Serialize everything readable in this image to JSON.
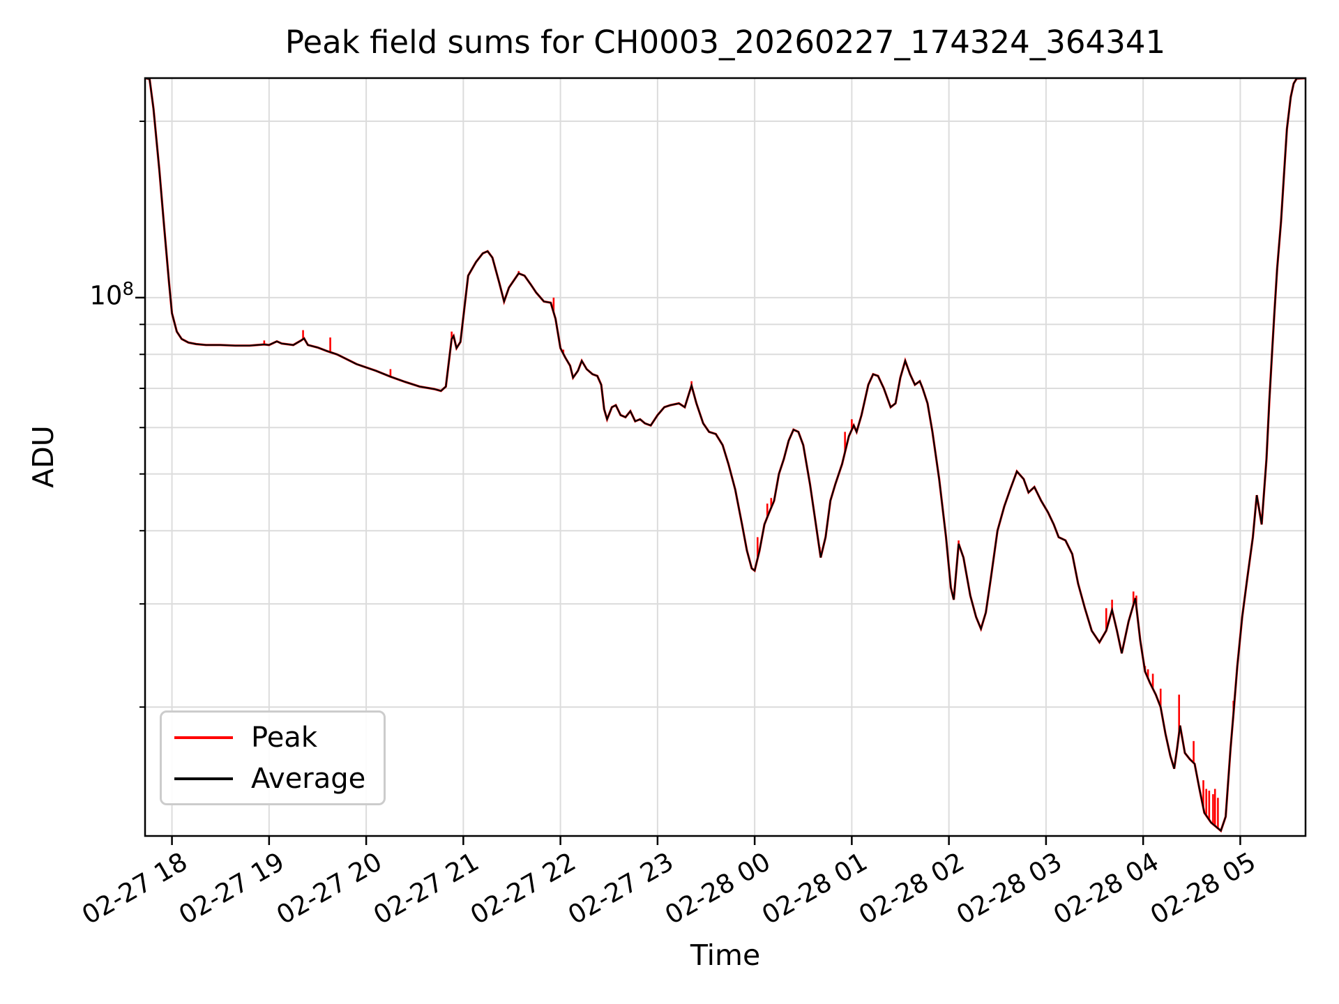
{
  "chart_data": {
    "type": "line",
    "title": "Peak field sums for CH0003_20260227_174324_364341",
    "xlabel": "Time",
    "ylabel": "ADU",
    "yscale": "log",
    "grid": "both",
    "legend_position": "lower left",
    "x_unit": "hours since 2026-02-27 18:00",
    "xlim": [
      -0.277,
      11.672
    ],
    "ylim": [
      12050000,
      237000000
    ],
    "y_major_tick": {
      "base": "10",
      "exp": "8",
      "value": 100000000.0
    },
    "y_minor_tick_values": [
      200000000.0,
      90000000.0,
      80000000.0,
      70000000.0,
      60000000.0,
      50000000.0,
      40000000.0,
      30000000.0,
      20000000.0
    ],
    "x_ticks": [
      {
        "t": 0,
        "label": "02-27 18"
      },
      {
        "t": 1,
        "label": "02-27 19"
      },
      {
        "t": 2,
        "label": "02-27 20"
      },
      {
        "t": 3,
        "label": "02-27 21"
      },
      {
        "t": 4,
        "label": "02-27 22"
      },
      {
        "t": 5,
        "label": "02-27 23"
      },
      {
        "t": 6,
        "label": "02-28 00"
      },
      {
        "t": 7,
        "label": "02-28 01"
      },
      {
        "t": 8,
        "label": "02-28 02"
      },
      {
        "t": 9,
        "label": "02-28 03"
      },
      {
        "t": 10,
        "label": "02-28 04"
      },
      {
        "t": 11,
        "label": "02-28 05"
      }
    ],
    "legend": [
      {
        "label": "Peak",
        "color": "#ff0000"
      },
      {
        "label": "Average",
        "color": "#000000"
      }
    ],
    "series": [
      {
        "name": "Average",
        "color": "#000000",
        "points": [
          [
            -0.277,
            237000000.0
          ],
          [
            -0.23,
            236000000.0
          ],
          [
            -0.19,
            210000000.0
          ],
          [
            -0.13,
            165000000.0
          ],
          [
            -0.08,
            132000000.0
          ],
          [
            -0.03,
            106000000.0
          ],
          [
            0.0,
            94000000.0
          ],
          [
            0.05,
            87500000.0
          ],
          [
            0.1,
            85000000.0
          ],
          [
            0.17,
            83800000.0
          ],
          [
            0.25,
            83300000.0
          ],
          [
            0.35,
            83000000.0
          ],
          [
            0.5,
            83000000.0
          ],
          [
            0.65,
            82800000.0
          ],
          [
            0.8,
            82800000.0
          ],
          [
            0.95,
            83200000.0
          ],
          [
            1.0,
            83000000.0
          ],
          [
            1.08,
            84200000.0
          ],
          [
            1.13,
            83500000.0
          ],
          [
            1.25,
            83000000.0
          ],
          [
            1.33,
            84500000.0
          ],
          [
            1.36,
            85200000.0
          ],
          [
            1.4,
            83000000.0
          ],
          [
            1.5,
            82200000.0
          ],
          [
            1.6,
            81000000.0
          ],
          [
            1.7,
            80000000.0
          ],
          [
            1.8,
            78500000.0
          ],
          [
            1.9,
            77000000.0
          ],
          [
            2.0,
            76000000.0
          ],
          [
            2.1,
            75000000.0
          ],
          [
            2.25,
            73300000.0
          ],
          [
            2.4,
            71800000.0
          ],
          [
            2.55,
            70500000.0
          ],
          [
            2.7,
            69800000.0
          ],
          [
            2.77,
            69300000.0
          ],
          [
            2.82,
            70500000.0
          ],
          [
            2.88,
            85000000.0
          ],
          [
            2.9,
            86000000.0
          ],
          [
            2.93,
            82000000.0
          ],
          [
            2.97,
            84000000.0
          ],
          [
            3.05,
            109000000.0
          ],
          [
            3.13,
            115000000.0
          ],
          [
            3.2,
            119000000.0
          ],
          [
            3.25,
            120000000.0
          ],
          [
            3.3,
            117000000.0
          ],
          [
            3.37,
            106000000.0
          ],
          [
            3.42,
            98500000.0
          ],
          [
            3.47,
            104000000.0
          ],
          [
            3.52,
            107000000.0
          ],
          [
            3.57,
            110000000.0
          ],
          [
            3.63,
            109000000.0
          ],
          [
            3.7,
            105000000.0
          ],
          [
            3.75,
            102000000.0
          ],
          [
            3.83,
            98500000.0
          ],
          [
            3.9,
            98000000.0
          ],
          [
            3.95,
            92000000.0
          ],
          [
            4.0,
            82000000.0
          ],
          [
            4.05,
            79000000.0
          ],
          [
            4.1,
            76500000.0
          ],
          [
            4.13,
            73000000.0
          ],
          [
            4.18,
            75000000.0
          ],
          [
            4.22,
            78000000.0
          ],
          [
            4.27,
            75500000.0
          ],
          [
            4.33,
            74000000.0
          ],
          [
            4.38,
            73500000.0
          ],
          [
            4.42,
            71000000.0
          ],
          [
            4.45,
            64500000.0
          ],
          [
            4.48,
            62000000.0
          ],
          [
            4.53,
            65000000.0
          ],
          [
            4.57,
            65500000.0
          ],
          [
            4.62,
            63000000.0
          ],
          [
            4.67,
            62500000.0
          ],
          [
            4.72,
            64000000.0
          ],
          [
            4.77,
            61500000.0
          ],
          [
            4.82,
            62000000.0
          ],
          [
            4.87,
            61000000.0
          ],
          [
            4.93,
            60500000.0
          ],
          [
            5.0,
            63000000.0
          ],
          [
            5.07,
            65000000.0
          ],
          [
            5.13,
            65500000.0
          ],
          [
            5.22,
            66000000.0
          ],
          [
            5.28,
            65000000.0
          ],
          [
            5.35,
            70800000.0
          ],
          [
            5.4,
            66000000.0
          ],
          [
            5.47,
            61000000.0
          ],
          [
            5.53,
            59000000.0
          ],
          [
            5.6,
            58500000.0
          ],
          [
            5.67,
            56000000.0
          ],
          [
            5.73,
            52000000.0
          ],
          [
            5.8,
            47000000.0
          ],
          [
            5.87,
            41000000.0
          ],
          [
            5.92,
            37000000.0
          ],
          [
            5.97,
            34500000.0
          ],
          [
            6.0,
            34200000.0
          ],
          [
            6.05,
            37000000.0
          ],
          [
            6.1,
            41000000.0
          ],
          [
            6.15,
            43000000.0
          ],
          [
            6.2,
            45000000.0
          ],
          [
            6.25,
            50000000.0
          ],
          [
            6.3,
            53000000.0
          ],
          [
            6.35,
            57000000.0
          ],
          [
            6.4,
            59500000.0
          ],
          [
            6.45,
            59000000.0
          ],
          [
            6.5,
            56000000.0
          ],
          [
            6.57,
            48000000.0
          ],
          [
            6.63,
            41000000.0
          ],
          [
            6.68,
            36000000.0
          ],
          [
            6.73,
            39000000.0
          ],
          [
            6.78,
            45000000.0
          ],
          [
            6.83,
            48000000.0
          ],
          [
            6.9,
            52000000.0
          ],
          [
            6.97,
            58000000.0
          ],
          [
            7.02,
            60500000.0
          ],
          [
            7.05,
            59000000.0
          ],
          [
            7.1,
            63000000.0
          ],
          [
            7.17,
            71000000.0
          ],
          [
            7.22,
            74000000.0
          ],
          [
            7.27,
            73500000.0
          ],
          [
            7.33,
            70000000.0
          ],
          [
            7.4,
            65000000.0
          ],
          [
            7.45,
            66000000.0
          ],
          [
            7.5,
            73000000.0
          ],
          [
            7.55,
            78000000.0
          ],
          [
            7.6,
            74000000.0
          ],
          [
            7.65,
            71000000.0
          ],
          [
            7.7,
            72000000.0
          ],
          [
            7.73,
            70000000.0
          ],
          [
            7.78,
            66000000.0
          ],
          [
            7.83,
            59000000.0
          ],
          [
            7.9,
            49000000.0
          ],
          [
            7.97,
            39000000.0
          ],
          [
            8.02,
            32000000.0
          ],
          [
            8.05,
            30500000.0
          ],
          [
            8.1,
            38000000.0
          ],
          [
            8.15,
            36000000.0
          ],
          [
            8.22,
            31000000.0
          ],
          [
            8.28,
            28500000.0
          ],
          [
            8.33,
            27200000.0
          ],
          [
            8.38,
            29000000.0
          ],
          [
            8.43,
            33000000.0
          ],
          [
            8.5,
            40000000.0
          ],
          [
            8.57,
            44000000.0
          ],
          [
            8.63,
            47000000.0
          ],
          [
            8.7,
            50500000.0
          ],
          [
            8.77,
            49000000.0
          ],
          [
            8.82,
            46500000.0
          ],
          [
            8.88,
            47500000.0
          ],
          [
            8.95,
            45000000.0
          ],
          [
            9.02,
            43000000.0
          ],
          [
            9.08,
            41000000.0
          ],
          [
            9.13,
            39000000.0
          ],
          [
            9.2,
            38500000.0
          ],
          [
            9.27,
            36500000.0
          ],
          [
            9.33,
            32500000.0
          ],
          [
            9.4,
            29500000.0
          ],
          [
            9.47,
            27000000.0
          ],
          [
            9.55,
            25800000.0
          ],
          [
            9.62,
            27000000.0
          ],
          [
            9.68,
            29300000.0
          ],
          [
            9.73,
            27000000.0
          ],
          [
            9.78,
            24700000.0
          ],
          [
            9.85,
            28000000.0
          ],
          [
            9.92,
            30700000.0
          ],
          [
            9.97,
            26000000.0
          ],
          [
            10.02,
            23000000.0
          ],
          [
            10.07,
            22000000.0
          ],
          [
            10.13,
            21000000.0
          ],
          [
            10.18,
            20000000.0
          ],
          [
            10.23,
            18000000.0
          ],
          [
            10.28,
            16500000.0
          ],
          [
            10.32,
            15700000.0
          ],
          [
            10.35,
            17000000.0
          ],
          [
            10.38,
            18600000.0
          ],
          [
            10.43,
            16700000.0
          ],
          [
            10.48,
            16300000.0
          ],
          [
            10.53,
            16000000.0
          ],
          [
            10.58,
            14500000.0
          ],
          [
            10.63,
            13200000.0
          ],
          [
            10.7,
            12700000.0
          ],
          [
            10.75,
            12500000.0
          ],
          [
            10.8,
            12300000.0
          ],
          [
            10.85,
            13000000.0
          ],
          [
            10.9,
            17000000.0
          ],
          [
            10.93,
            19500000.0
          ],
          [
            10.97,
            23500000.0
          ],
          [
            11.02,
            28500000.0
          ],
          [
            11.07,
            33000000.0
          ],
          [
            11.13,
            39000000.0
          ],
          [
            11.17,
            46000000.0
          ],
          [
            11.22,
            41000000.0
          ],
          [
            11.27,
            53000000.0
          ],
          [
            11.3,
            67000000.0
          ],
          [
            11.33,
            82000000.0
          ],
          [
            11.35,
            93500000.0
          ],
          [
            11.38,
            112000000.0
          ],
          [
            11.42,
            135000000.0
          ],
          [
            11.45,
            162000000.0
          ],
          [
            11.48,
            194000000.0
          ],
          [
            11.52,
            220000000.0
          ],
          [
            11.55,
            232000000.0
          ],
          [
            11.58,
            236500000.0
          ],
          [
            11.672,
            237000000.0
          ]
        ]
      },
      {
        "name": "Peak",
        "color": "#ff0000",
        "note": "identical to Average plus upward spikes",
        "spikes": [
          [
            0.95,
            84500000.0
          ],
          [
            1.35,
            88000000.0
          ],
          [
            1.63,
            85500000.0
          ],
          [
            2.25,
            75500000.0
          ],
          [
            2.88,
            87500000.0
          ],
          [
            3.57,
            111000000.0
          ],
          [
            3.93,
            100000000.0
          ],
          [
            4.03,
            81500000.0
          ],
          [
            5.35,
            72000000.0
          ],
          [
            6.03,
            39000000.0
          ],
          [
            6.13,
            44500000.0
          ],
          [
            6.17,
            45500000.0
          ],
          [
            6.67,
            37500000.0
          ],
          [
            6.93,
            59000000.0
          ],
          [
            7.0,
            62000000.0
          ],
          [
            8.1,
            38500000.0
          ],
          [
            9.62,
            29500000.0
          ],
          [
            9.68,
            30500000.0
          ],
          [
            9.9,
            31500000.0
          ],
          [
            9.93,
            31000000.0
          ],
          [
            10.02,
            23500000.0
          ],
          [
            10.05,
            23200000.0
          ],
          [
            10.1,
            22800000.0
          ],
          [
            10.18,
            21500000.0
          ],
          [
            10.37,
            21000000.0
          ],
          [
            10.52,
            17500000.0
          ],
          [
            10.62,
            15000000.0
          ],
          [
            10.65,
            14500000.0
          ],
          [
            10.68,
            14400000.0
          ],
          [
            10.72,
            14200000.0
          ],
          [
            10.74,
            14500000.0
          ],
          [
            10.77,
            14000000.0
          ],
          [
            10.87,
            14500000.0
          ],
          [
            10.93,
            20500000.0
          ]
        ]
      }
    ]
  },
  "colors": {
    "background": "#ffffff",
    "grid": "#dcdcdc",
    "spine": "#000000",
    "peak": "#ff0000",
    "average": "#000000"
  }
}
